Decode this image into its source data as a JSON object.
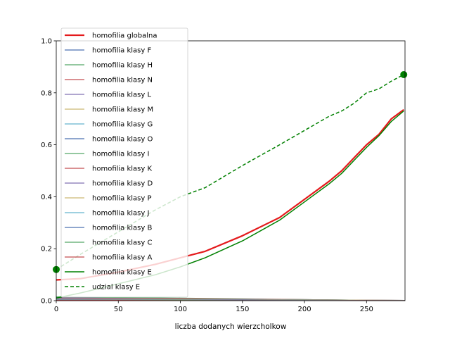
{
  "chart_data": {
    "type": "line",
    "title": "",
    "xlabel": "liczba dodanych wierzcholkow",
    "ylabel": "",
    "xlim": [
      0,
      281
    ],
    "ylim": [
      0,
      1.0
    ],
    "x_ticks": [
      "0",
      "50",
      "100",
      "150",
      "200",
      "250"
    ],
    "x_tick_values": [
      0,
      50,
      100,
      150,
      200,
      250
    ],
    "y_ticks": [
      "0.0",
      "0.2",
      "0.4",
      "0.6",
      "0.8",
      "1.0"
    ],
    "y_tick_values": [
      0.0,
      0.2,
      0.4,
      0.6,
      0.8,
      1.0
    ],
    "grid": false,
    "legend_position": "top-left",
    "series": [
      {
        "name": "homofilia globalna",
        "color": "#e41a1c",
        "style": "solid",
        "width": 2.2,
        "x": [
          0,
          20,
          50,
          80,
          100,
          120,
          150,
          180,
          200,
          220,
          230,
          240,
          250,
          260,
          270,
          280
        ],
        "y": [
          0.08,
          0.085,
          0.11,
          0.14,
          0.165,
          0.19,
          0.25,
          0.32,
          0.39,
          0.46,
          0.5,
          0.55,
          0.6,
          0.64,
          0.7,
          0.735
        ]
      },
      {
        "name": "homofilia klasy F",
        "color": "#4c72b0",
        "style": "solid",
        "width": 1.2,
        "x": [
          0,
          50,
          100,
          150,
          200,
          250,
          281
        ],
        "y": [
          0.012,
          0.011,
          0.009,
          0.006,
          0.004,
          0.002,
          0.001
        ]
      },
      {
        "name": "homofilia klasy H",
        "color": "#55a868",
        "style": "solid",
        "width": 1.2,
        "x": [
          0,
          50,
          100,
          150,
          200,
          250,
          281
        ],
        "y": [
          0.015,
          0.012,
          0.01,
          0.007,
          0.004,
          0.002,
          0.001
        ]
      },
      {
        "name": "homofilia klasy N",
        "color": "#c44e52",
        "style": "solid",
        "width": 1.2,
        "x": [
          0,
          50,
          100,
          150,
          200,
          250,
          281
        ],
        "y": [
          0.01,
          0.009,
          0.008,
          0.006,
          0.004,
          0.002,
          0.001
        ]
      },
      {
        "name": "homofilia klasy L",
        "color": "#8172b2",
        "style": "solid",
        "width": 1.2,
        "x": [
          0,
          50,
          100,
          150,
          200,
          250,
          281
        ],
        "y": [
          0.008,
          0.007,
          0.006,
          0.005,
          0.003,
          0.002,
          0.001
        ]
      },
      {
        "name": "homofilia klasy M",
        "color": "#ccb974",
        "style": "solid",
        "width": 1.2,
        "x": [
          0,
          50,
          100,
          150,
          200,
          250,
          281
        ],
        "y": [
          0.006,
          0.006,
          0.005,
          0.004,
          0.003,
          0.002,
          0.001
        ]
      },
      {
        "name": "homofilia klasy G",
        "color": "#64b5cd",
        "style": "solid",
        "width": 1.2,
        "x": [
          0,
          50,
          100,
          150,
          200,
          250,
          281
        ],
        "y": [
          0.005,
          0.005,
          0.004,
          0.003,
          0.002,
          0.001,
          0.001
        ]
      },
      {
        "name": "homofilia klasy O",
        "color": "#4c72b0",
        "style": "solid",
        "width": 1.2,
        "x": [
          0,
          50,
          100,
          150,
          200,
          250,
          281
        ],
        "y": [
          0.004,
          0.004,
          0.003,
          0.003,
          0.002,
          0.001,
          0.0
        ]
      },
      {
        "name": "homofilia klasy I",
        "color": "#55a868",
        "style": "solid",
        "width": 1.2,
        "x": [
          0,
          50,
          100,
          150,
          200,
          250,
          281
        ],
        "y": [
          0.004,
          0.003,
          0.003,
          0.002,
          0.002,
          0.001,
          0.0
        ]
      },
      {
        "name": "homofilia klasy K",
        "color": "#c44e52",
        "style": "solid",
        "width": 1.2,
        "x": [
          0,
          50,
          100,
          150,
          200,
          250,
          281
        ],
        "y": [
          0.003,
          0.003,
          0.002,
          0.002,
          0.001,
          0.001,
          0.0
        ]
      },
      {
        "name": "homofilia klasy D",
        "color": "#8172b2",
        "style": "solid",
        "width": 1.2,
        "x": [
          0,
          50,
          100,
          150,
          200,
          250,
          281
        ],
        "y": [
          0.003,
          0.002,
          0.002,
          0.002,
          0.001,
          0.0,
          0.0
        ]
      },
      {
        "name": "homofilia klasy P",
        "color": "#ccb974",
        "style": "solid",
        "width": 1.2,
        "x": [
          0,
          50,
          100,
          150,
          200,
          250,
          281
        ],
        "y": [
          0.002,
          0.002,
          0.002,
          0.001,
          0.001,
          0.0,
          0.0
        ]
      },
      {
        "name": "homofilia klasy J",
        "color": "#64b5cd",
        "style": "solid",
        "width": 1.2,
        "x": [
          0,
          50,
          100,
          150,
          200,
          250,
          281
        ],
        "y": [
          0.002,
          0.002,
          0.001,
          0.001,
          0.001,
          0.0,
          0.0
        ]
      },
      {
        "name": "homofilia klasy B",
        "color": "#4c72b0",
        "style": "solid",
        "width": 1.2,
        "x": [
          0,
          50,
          100,
          150,
          200,
          250,
          281
        ],
        "y": [
          0.002,
          0.001,
          0.001,
          0.001,
          0.0,
          0.0,
          0.0
        ]
      },
      {
        "name": "homofilia klasy C",
        "color": "#55a868",
        "style": "solid",
        "width": 1.2,
        "x": [
          0,
          50,
          100,
          150,
          200,
          250,
          281
        ],
        "y": [
          0.001,
          0.001,
          0.001,
          0.0,
          0.0,
          0.0,
          0.0
        ]
      },
      {
        "name": "homofilia klasy A",
        "color": "#c44e52",
        "style": "solid",
        "width": 1.2,
        "x": [
          0,
          50,
          100,
          150,
          200,
          250,
          281
        ],
        "y": [
          0.001,
          0.001,
          0.0,
          0.0,
          0.0,
          0.0,
          0.0
        ]
      },
      {
        "name": "homofilia klasy E",
        "color": "#008000",
        "style": "solid",
        "width": 1.5,
        "x": [
          0,
          20,
          50,
          80,
          100,
          120,
          150,
          180,
          200,
          220,
          230,
          240,
          250,
          260,
          270,
          280
        ],
        "y": [
          0.01,
          0.03,
          0.065,
          0.1,
          0.13,
          0.165,
          0.23,
          0.31,
          0.38,
          0.45,
          0.49,
          0.54,
          0.59,
          0.635,
          0.69,
          0.73
        ]
      },
      {
        "name": "udzial klasy E",
        "color": "#008000",
        "style": "dashed",
        "width": 1.5,
        "x": [
          0,
          20,
          50,
          80,
          100,
          120,
          150,
          180,
          200,
          220,
          230,
          240,
          250,
          260,
          270,
          280
        ],
        "y": [
          0.12,
          0.18,
          0.265,
          0.35,
          0.4,
          0.435,
          0.52,
          0.6,
          0.655,
          0.71,
          0.73,
          0.76,
          0.8,
          0.815,
          0.845,
          0.87
        ]
      }
    ],
    "markers": [
      {
        "series": "udzial klasy E",
        "x": 0,
        "y": 0.12,
        "color": "#008000"
      },
      {
        "series": "udzial klasy E",
        "x": 280,
        "y": 0.87,
        "color": "#008000"
      }
    ]
  }
}
